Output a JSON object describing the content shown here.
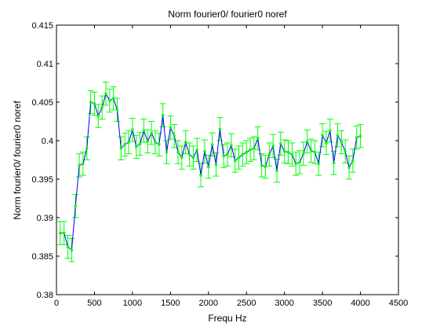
{
  "chart_data": {
    "type": "line",
    "title": "Norm fourier0/ fourier0 noref",
    "xlabel": "Frequ Hz",
    "ylabel": "Norm fourier0/ fourier0 noref",
    "xlim": [
      0,
      4500
    ],
    "ylim": [
      0.38,
      0.415
    ],
    "xticks": [
      0,
      500,
      1000,
      1500,
      2000,
      2500,
      3000,
      3500,
      4000,
      4500
    ],
    "xtick_labels": [
      "0",
      "500",
      "1000",
      "1500",
      "2000",
      "2500",
      "3000",
      "3500",
      "4000",
      "4500"
    ],
    "yticks": [
      0.38,
      0.385,
      0.39,
      0.395,
      0.4,
      0.405,
      0.41,
      0.415
    ],
    "ytick_labels": [
      "0.38",
      "0.385",
      "0.39",
      "0.395",
      "0.4",
      "0.405",
      "0.41",
      "0.415"
    ],
    "grid": false,
    "legend": null,
    "colors": {
      "line": "#0000ff",
      "markers_errorbars": "#00ff00",
      "axes": "#000000"
    },
    "series": [
      {
        "x": [
          50,
          100,
          150,
          200,
          250,
          300,
          350,
          400,
          450,
          500,
          550,
          600,
          650,
          700,
          750,
          800,
          850,
          900,
          950,
          1000,
          1050,
          1100,
          1150,
          1200,
          1250,
          1300,
          1350,
          1400,
          1450,
          1500,
          1550,
          1600,
          1650,
          1700,
          1750,
          1800,
          1850,
          1900,
          1950,
          2000,
          2050,
          2100,
          2150,
          2200,
          2250,
          2300,
          2350,
          2400,
          2450,
          2500,
          2550,
          2600,
          2650,
          2700,
          2750,
          2800,
          2850,
          2900,
          2950,
          3000,
          3050,
          3100,
          3150,
          3200,
          3250,
          3300,
          3350,
          3400,
          3450,
          3500,
          3550,
          3600,
          3650,
          3700,
          3750,
          3800,
          3850,
          3900,
          3950,
          4000
        ],
        "y": [
          0.388,
          0.388,
          0.3862,
          0.3858,
          0.3915,
          0.3968,
          0.397,
          0.399,
          0.405,
          0.4048,
          0.4032,
          0.4043,
          0.4061,
          0.4052,
          0.4055,
          0.404,
          0.399,
          0.3995,
          0.3998,
          0.4014,
          0.3992,
          0.3996,
          0.4013,
          0.3999,
          0.401,
          0.3998,
          0.3995,
          0.4033,
          0.3985,
          0.4017,
          0.4006,
          0.3985,
          0.3978,
          0.3998,
          0.3982,
          0.3978,
          0.3988,
          0.3955,
          0.3986,
          0.3966,
          0.3995,
          0.3969,
          0.4015,
          0.398,
          0.3982,
          0.3994,
          0.3974,
          0.3978,
          0.3982,
          0.3985,
          0.3988,
          0.399,
          0.4003,
          0.3968,
          0.3966,
          0.3982,
          0.3993,
          0.3961,
          0.3996,
          0.3986,
          0.3985,
          0.3982,
          0.397,
          0.3972,
          0.3983,
          0.3999,
          0.3987,
          0.3985,
          0.397,
          0.4007,
          0.3997,
          0.4013,
          0.3971,
          0.4007,
          0.3998,
          0.3986,
          0.3965,
          0.3974,
          0.4004,
          0.4006
        ],
        "err": [
          0.0015,
          0.0015,
          0.0015,
          0.0015,
          0.0015,
          0.0015,
          0.0015,
          0.0015,
          0.0015,
          0.0015,
          0.0015,
          0.0015,
          0.0015,
          0.0015,
          0.0015,
          0.0015,
          0.0015,
          0.0015,
          0.0015,
          0.0015,
          0.0015,
          0.0015,
          0.0015,
          0.0015,
          0.0015,
          0.0015,
          0.0015,
          0.0015,
          0.0015,
          0.0015,
          0.0015,
          0.0015,
          0.0015,
          0.0015,
          0.0015,
          0.0015,
          0.0015,
          0.0015,
          0.0015,
          0.0015,
          0.0015,
          0.0015,
          0.0015,
          0.0015,
          0.0015,
          0.0015,
          0.0015,
          0.0015,
          0.0015,
          0.0015,
          0.0015,
          0.0015,
          0.0015,
          0.0015,
          0.0015,
          0.0015,
          0.0015,
          0.0015,
          0.0015,
          0.0015,
          0.0015,
          0.0015,
          0.0015,
          0.0015,
          0.0015,
          0.0015,
          0.0015,
          0.0015,
          0.0015,
          0.0015,
          0.0015,
          0.0015,
          0.0015,
          0.0015,
          0.0015,
          0.0015,
          0.0015,
          0.0015,
          0.0015,
          0.0015
        ]
      }
    ]
  }
}
